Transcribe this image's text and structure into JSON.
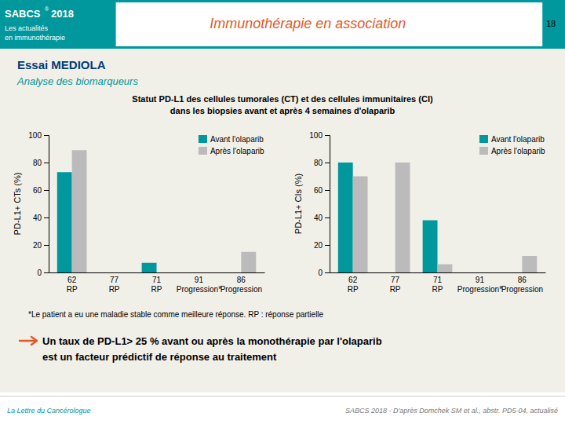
{
  "header": {
    "brand": "SABCS",
    "registered": "®",
    "year": "2018",
    "tagline_line1": "Les actualités",
    "tagline_line2": "en immunothérapie",
    "title": "Immunothérapie en association",
    "page_number": "18"
  },
  "section_title": "Essai MEDIOLA",
  "section_subtitle": "Analyse des biomarqueurs",
  "figure_title": [
    "Statut PD-L1 des cellules tumorales (CT) et des cellules immunitaires (CI)",
    "dans les biopsies avant et après 4 semaines d'olaparib"
  ],
  "chart_data": [
    {
      "type": "bar",
      "categories": [
        "62\nRP",
        "77\nRP",
        "71\nRP",
        "91\nProgression*",
        "86\nProgression"
      ],
      "series": [
        {
          "name": "Avant l'olaparib",
          "color": "#00979D",
          "values": [
            73,
            0,
            7,
            0,
            0
          ]
        },
        {
          "name": "Après l'olaparib",
          "color": "#BBBBBB",
          "values": [
            89,
            0,
            0,
            0,
            15
          ]
        }
      ],
      "ylabel": "PD-L1+ CTs (%)",
      "ylim": [
        0,
        100
      ],
      "yticks": [
        0,
        20,
        40,
        60,
        80,
        100
      ],
      "legend": "upper right",
      "grid": false
    },
    {
      "type": "bar",
      "categories": [
        "62\nRP",
        "77\nRP",
        "71\nRP",
        "91\nProgression*",
        "86\nProgression"
      ],
      "series": [
        {
          "name": "Avant l'olaparib",
          "color": "#00979D",
          "values": [
            80,
            0,
            38,
            0,
            0
          ]
        },
        {
          "name": "Après l'olaparib",
          "color": "#BBBBBB",
          "values": [
            70,
            80,
            6,
            0,
            12
          ]
        }
      ],
      "ylabel": "PD-L1+ CIs (%)",
      "ylim": [
        0,
        100
      ],
      "yticks": [
        0,
        20,
        40,
        60,
        80,
        100
      ],
      "legend": "upper right",
      "grid": false
    }
  ],
  "footnote": "*Le patient a eu une maladie stable comme meilleure réponse. RP : réponse partielle",
  "conclusion": [
    "Un taux de PD-L1> 25 % avant ou après la monothérapie par l'olaparib",
    "est un facteur prédictif de réponse au traitement"
  ],
  "footer_left": "La Lettre du Cancérologue",
  "footer_right": "SABCS 2018 - D'après Domchek SM et al., abstr. PD5-04, actualisé"
}
